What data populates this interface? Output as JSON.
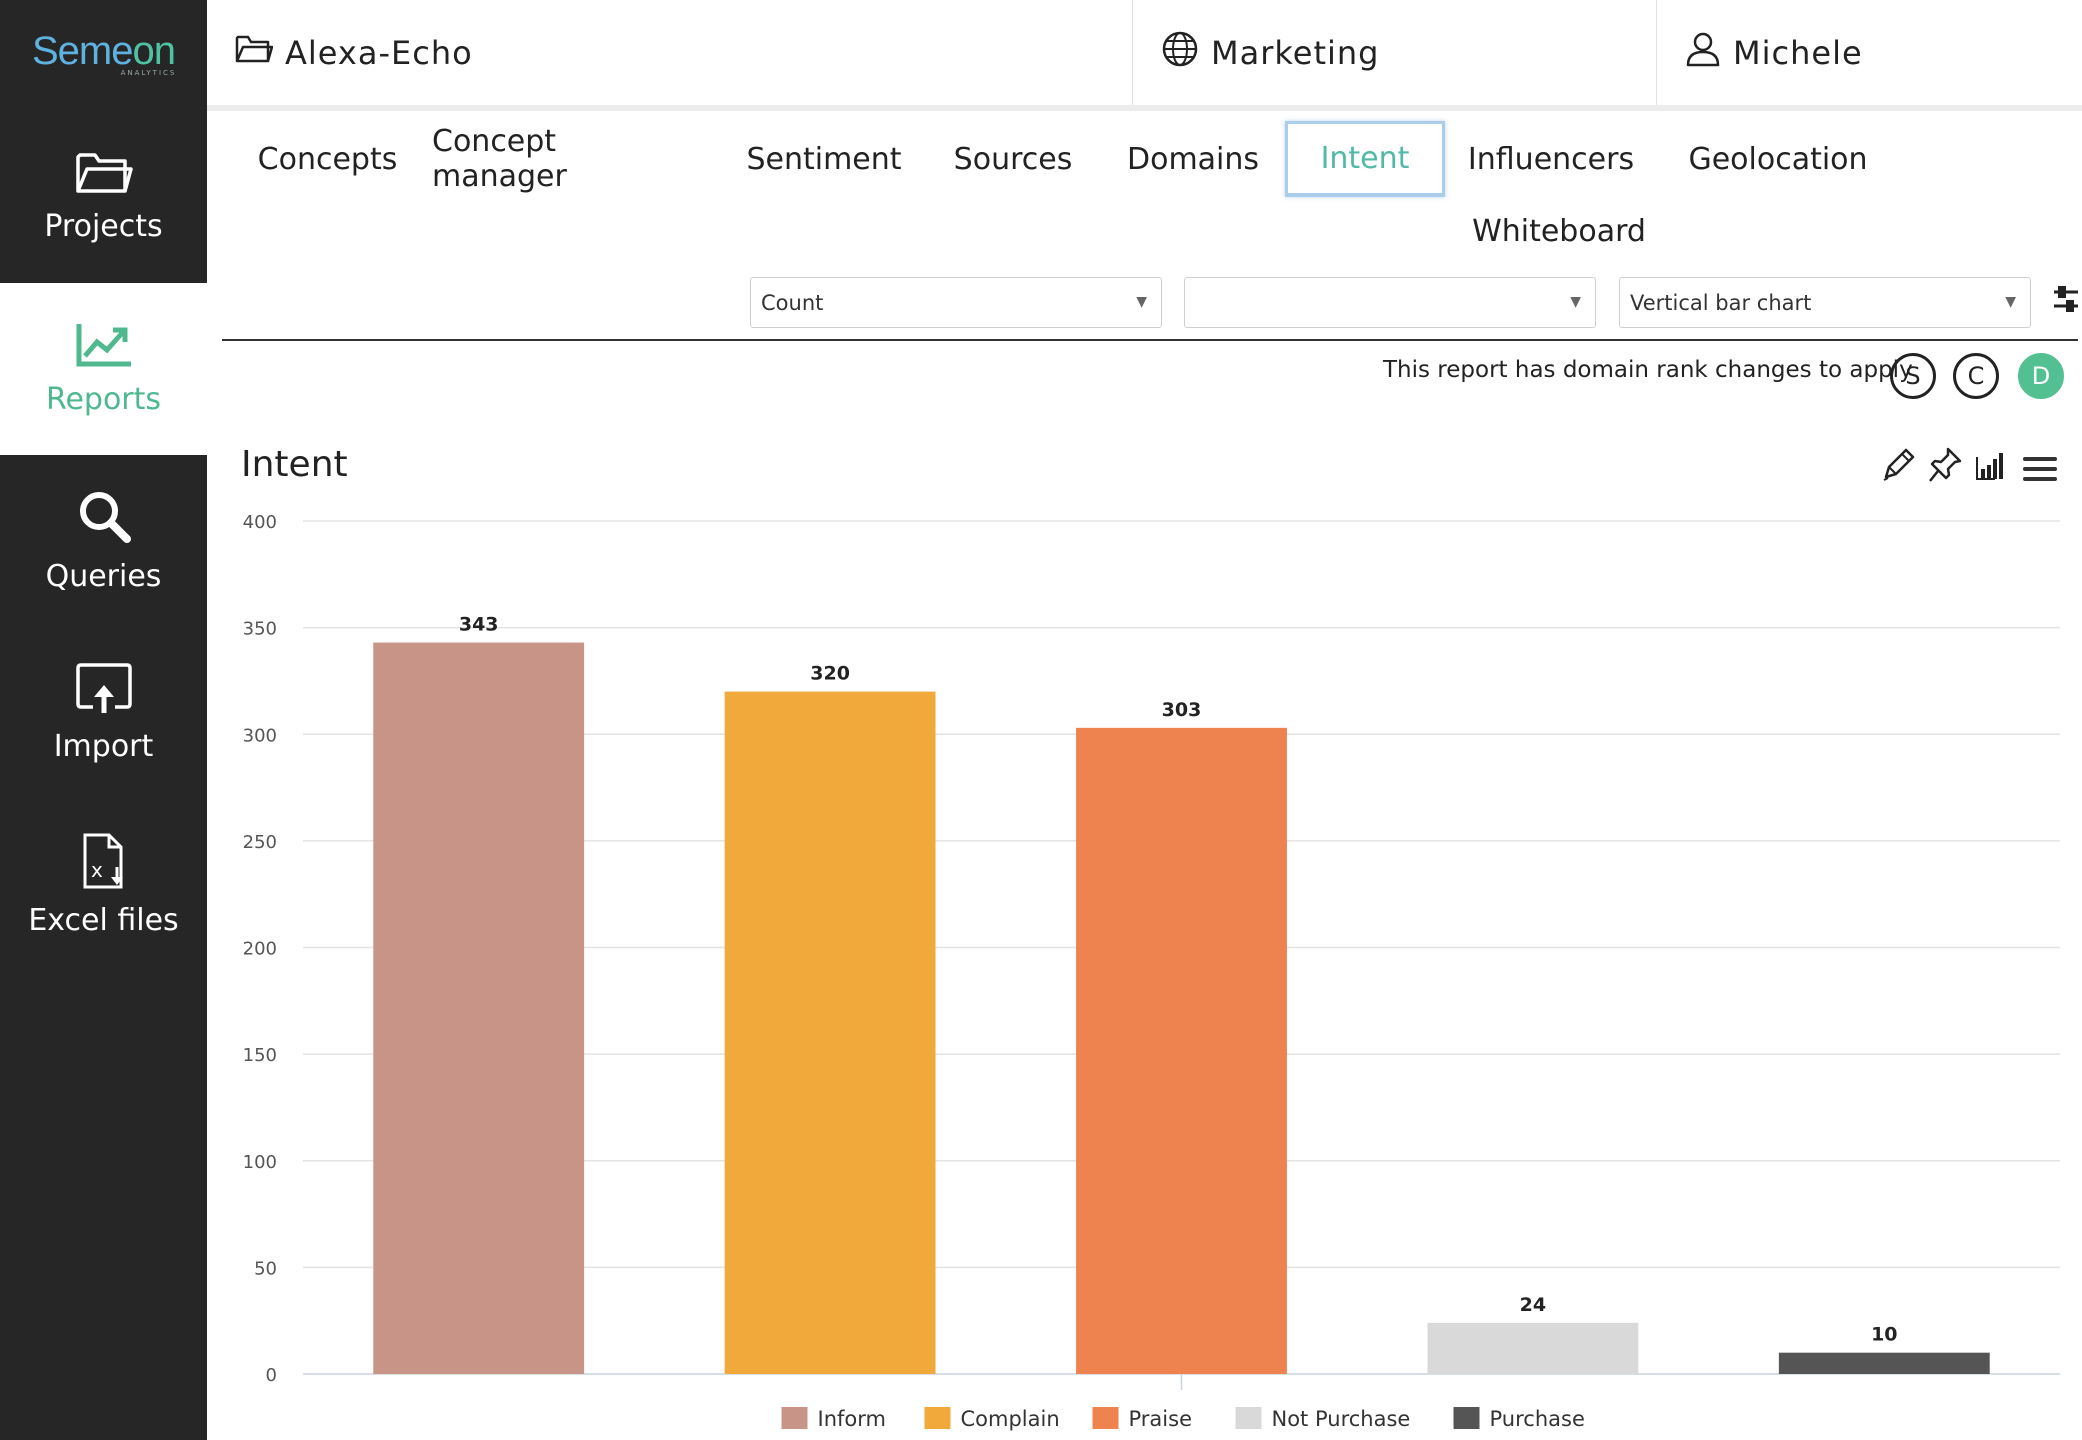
{
  "brand": {
    "logo_part1": "Seme",
    "logo_part2": "on",
    "logo_sub": "ANALYTICS"
  },
  "sidebar": {
    "items": [
      {
        "label": "Projects",
        "icon": "folder-icon"
      },
      {
        "label": "Reports",
        "icon": "trend-chart-icon",
        "active": true
      },
      {
        "label": "Queries",
        "icon": "search-icon"
      },
      {
        "label": "Import",
        "icon": "upload-icon"
      },
      {
        "label": "Excel files",
        "icon": "excel-file-icon"
      }
    ]
  },
  "topbar": {
    "project": "Alexa-Echo",
    "workspace": "Marketing",
    "user": "Michele"
  },
  "tabs": [
    {
      "label": "Concepts"
    },
    {
      "label": "Concept manager"
    },
    {
      "label": "Sentiment"
    },
    {
      "label": "Sources"
    },
    {
      "label": "Domains"
    },
    {
      "label": "Intent",
      "active": true
    },
    {
      "label": "Influencers"
    },
    {
      "label": "Geolocation"
    },
    {
      "label": "Whiteboard"
    }
  ],
  "controls": {
    "metric": "Count",
    "secondary": "",
    "chart_type": "Vertical bar chart"
  },
  "notice": {
    "text": "This report has domain rank changes to apply",
    "buttons": [
      "S",
      "C",
      "D"
    ]
  },
  "colors": {
    "accent_green": "#4fb88e",
    "active_tab": "#53b9a7",
    "sidebar_bg": "#262626"
  },
  "chart_data": {
    "type": "bar",
    "title": "Intent",
    "categories": [
      "Inform",
      "Complain",
      "Praise",
      "Not Purchase",
      "Purchase"
    ],
    "values": [
      343,
      320,
      303,
      24,
      10
    ],
    "colors": [
      "#c99488",
      "#f1a93b",
      "#ee8350",
      "#d9d9d9",
      "#555555"
    ],
    "ylim": [
      0,
      400
    ],
    "yticks": [
      0,
      50,
      100,
      150,
      200,
      250,
      300,
      350,
      400
    ],
    "xlabel": "",
    "ylabel": "",
    "grid": true,
    "legend": "bottom"
  }
}
